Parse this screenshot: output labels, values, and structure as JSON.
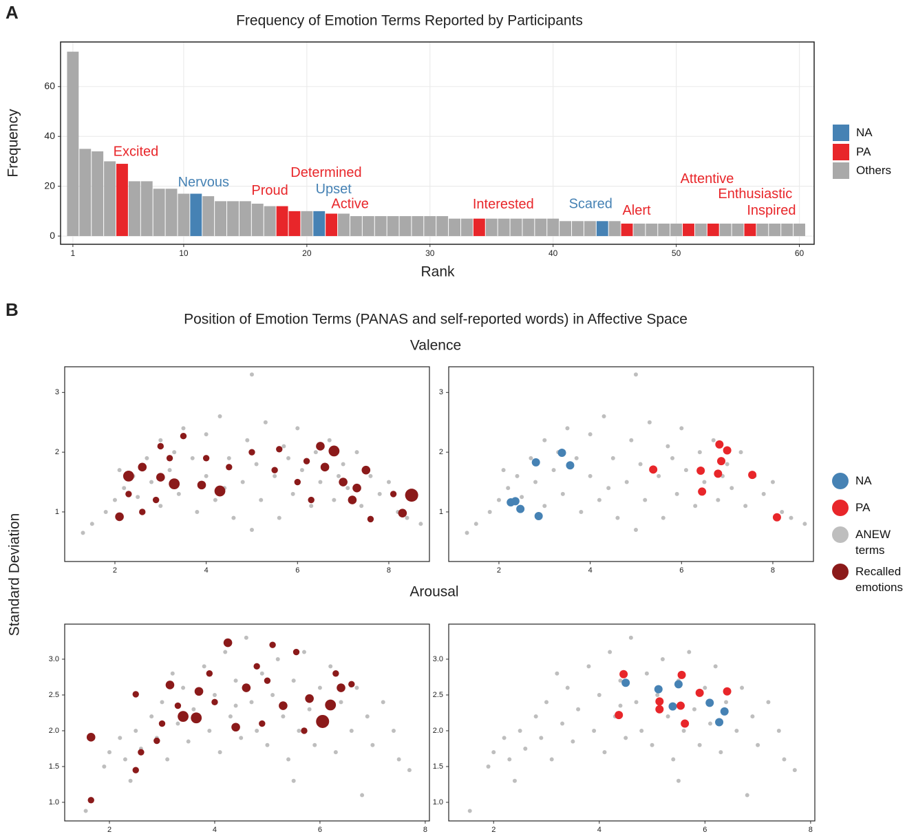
{
  "figure": {
    "panel_a_label": "A",
    "panel_b_label": "B",
    "title_b": "Position of Emotion Terms (PANAS and self-reported words) in Affective Space",
    "y_label_b": "Standard Deviation"
  },
  "chart_data": [
    {
      "type": "bar",
      "title": "Frequency of Emotion Terms Reported by Participants",
      "x_label": "Rank",
      "y_label": "Frequency",
      "grid": true,
      "x": [
        1,
        2,
        3,
        4,
        5,
        6,
        7,
        8,
        9,
        10,
        11,
        12,
        13,
        14,
        15,
        16,
        17,
        18,
        19,
        20,
        21,
        22,
        23,
        24,
        25,
        26,
        27,
        28,
        29,
        30,
        31,
        32,
        33,
        34,
        35,
        36,
        37,
        38,
        39,
        40,
        41,
        42,
        43,
        44,
        45,
        46,
        47,
        48,
        49,
        50,
        51,
        52,
        53,
        54,
        55,
        56,
        57,
        58,
        59,
        60
      ],
      "xlim": [
        0,
        61.2
      ],
      "ylim": [
        -3.3,
        77.9
      ],
      "xticks": [
        1,
        10,
        20,
        30,
        40,
        50,
        60
      ],
      "yticks": [
        0,
        20,
        40,
        60
      ],
      "series": [
        {
          "name": "NA",
          "color": "#4682b4",
          "values": [
            null,
            null,
            null,
            null,
            null,
            null,
            null,
            null,
            null,
            null,
            17,
            null,
            null,
            null,
            null,
            null,
            null,
            null,
            null,
            null,
            10,
            null,
            null,
            null,
            null,
            null,
            null,
            null,
            null,
            null,
            null,
            null,
            null,
            null,
            null,
            null,
            null,
            null,
            null,
            null,
            null,
            null,
            null,
            6,
            null,
            null,
            null,
            null,
            null,
            null,
            null,
            null,
            null,
            null,
            null,
            null,
            null,
            null,
            null,
            null
          ]
        },
        {
          "name": "PA",
          "color": "#e8262a",
          "values": [
            null,
            null,
            null,
            null,
            29,
            null,
            null,
            null,
            null,
            null,
            null,
            null,
            null,
            null,
            null,
            null,
            null,
            12,
            10,
            null,
            null,
            9,
            null,
            null,
            null,
            null,
            null,
            null,
            null,
            null,
            null,
            null,
            null,
            7,
            null,
            null,
            null,
            null,
            null,
            null,
            null,
            null,
            null,
            null,
            null,
            5,
            null,
            null,
            null,
            null,
            5,
            null,
            5,
            null,
            null,
            5,
            null,
            null,
            null,
            null
          ]
        },
        {
          "name": "Others",
          "color": "#a9a9a9",
          "values": [
            74,
            35,
            34,
            30,
            null,
            22,
            22,
            19,
            19,
            17,
            null,
            16,
            14,
            14,
            14,
            13,
            12,
            null,
            null,
            10,
            null,
            null,
            9,
            8,
            8,
            8,
            8,
            8,
            8,
            8,
            8,
            7,
            7,
            null,
            7,
            7,
            7,
            7,
            7,
            7,
            6,
            6,
            6,
            null,
            6,
            null,
            5,
            5,
            5,
            5,
            null,
            5,
            null,
            5,
            5,
            null,
            5,
            5,
            5,
            5
          ]
        }
      ],
      "annotations": [
        {
          "text": "Excited",
          "x": 5
        },
        {
          "text": "Nervous",
          "x": 11
        },
        {
          "text": "Proud",
          "x": 18
        },
        {
          "text": "Determined",
          "x": 19
        },
        {
          "text": "Upset",
          "x": 21
        },
        {
          "text": "Active",
          "x": 22
        },
        {
          "text": "Interested",
          "x": 34
        },
        {
          "text": "Scared",
          "x": 44
        },
        {
          "text": "Alert",
          "x": 46
        },
        {
          "text": "Attentive",
          "x": 51
        },
        {
          "text": "Enthusiastic",
          "x": 53
        },
        {
          "text": "Inspired",
          "x": 56
        }
      ]
    },
    {
      "type": "scatter",
      "title": "Valence",
      "xlim": [
        0.9,
        8.89
      ],
      "ylim": [
        0.17,
        3.43
      ],
      "xticks": [
        2,
        4,
        6,
        8
      ],
      "yticks": [
        1,
        2,
        3
      ],
      "series": [
        {
          "name": "NA",
          "color": "#4682b4",
          "x": [
            2.81,
            3.38,
            3.56,
            2.26,
            2.36,
            2.47,
            2.87
          ],
          "y": [
            1.83,
            1.99,
            1.78,
            1.16,
            1.18,
            1.05,
            0.93
          ]
        },
        {
          "name": "PA",
          "color": "#e8262a",
          "x": [
            5.38,
            6.83,
            7.0,
            6.87,
            6.42,
            6.8,
            6.45,
            7.55,
            8.09
          ],
          "y": [
            1.71,
            2.13,
            2.03,
            1.85,
            1.69,
            1.64,
            1.34,
            1.62,
            0.91
          ]
        },
        {
          "name": "ANEW terms",
          "color": "#bebebe",
          "x": [
            1.3,
            1.5,
            1.8,
            2.0,
            2.2,
            2.4,
            2.5,
            2.7,
            2.8,
            3.0,
            3.0,
            3.2,
            3.4,
            3.5,
            3.7,
            3.8,
            4.0,
            4.0,
            4.2,
            4.3,
            4.5,
            4.6,
            4.8,
            4.9,
            5.0,
            5.0,
            5.1,
            5.2,
            5.3,
            5.5,
            5.6,
            5.7,
            5.9,
            6.0,
            6.1,
            6.3,
            6.4,
            6.5,
            6.7,
            6.8,
            7.0,
            7.1,
            7.3,
            7.4,
            7.6,
            7.8,
            8.0,
            8.2,
            8.4,
            8.7,
            3.3,
            4.4,
            5.8,
            2.1,
            6.9
          ],
          "y": [
            0.65,
            0.8,
            1.0,
            1.2,
            1.4,
            1.6,
            1.25,
            1.9,
            1.5,
            1.1,
            2.2,
            1.7,
            1.3,
            2.4,
            1.9,
            1.0,
            1.6,
            2.3,
            1.2,
            2.6,
            1.9,
            0.9,
            1.5,
            2.2,
            0.7,
            3.3,
            1.8,
            1.2,
            2.5,
            1.6,
            0.9,
            2.1,
            1.3,
            2.4,
            1.7,
            1.1,
            2.0,
            1.5,
            2.2,
            1.2,
            1.8,
            1.4,
            2.0,
            1.1,
            1.6,
            1.3,
            1.5,
            1.0,
            0.9,
            0.8,
            2.0,
            1.4,
            1.9,
            1.7,
            1.6
          ]
        },
        {
          "name": "Recalled emotions",
          "color": "#8b1a1a",
          "x": [
            2.1,
            2.6,
            2.3,
            2.6,
            3.0,
            3.3,
            3.9,
            4.3,
            3.5,
            4.5,
            5.0,
            5.5,
            6.0,
            6.3,
            6.5,
            6.8,
            7.0,
            7.5,
            7.2,
            8.5,
            8.3,
            7.6,
            3.0,
            2.9,
            5.6,
            6.2,
            6.6,
            7.3,
            4.0,
            2.3,
            8.1,
            3.2
          ],
          "y": [
            0.92,
            1.0,
            1.6,
            1.75,
            1.58,
            1.47,
            1.45,
            1.35,
            2.27,
            1.75,
            2.0,
            1.7,
            1.5,
            1.2,
            2.1,
            2.02,
            1.5,
            1.7,
            1.2,
            1.28,
            0.98,
            0.88,
            2.1,
            1.2,
            2.05,
            1.85,
            1.75,
            1.4,
            1.9,
            1.3,
            1.3,
            1.9
          ],
          "sizes": [
            3,
            2,
            4,
            3,
            3,
            4,
            3,
            4,
            2,
            2,
            2,
            2,
            2,
            2,
            3,
            4,
            3,
            3,
            3,
            5,
            3,
            2,
            2,
            2,
            2,
            2,
            3,
            3,
            2,
            2,
            2,
            2
          ]
        }
      ]
    },
    {
      "type": "scatter",
      "title": "Arousal",
      "xlim": [
        1.15,
        8.08
      ],
      "ylim": [
        0.74,
        3.49
      ],
      "xticks": [
        2,
        4,
        6,
        8
      ],
      "yticks": [
        {
          "value": 1,
          "label": "1.0"
        },
        1.5,
        {
          "value": 2,
          "label": "2.0"
        },
        2.5,
        {
          "value": 3,
          "label": "3.0"
        }
      ],
      "series": [
        {
          "name": "NA",
          "color": "#4682b4",
          "x": [
            4.5,
            5.12,
            5.5,
            5.39,
            6.09,
            6.37,
            6.27
          ],
          "y": [
            2.67,
            2.58,
            2.65,
            2.34,
            2.39,
            2.27,
            2.12
          ]
        },
        {
          "name": "PA",
          "color": "#e8262a",
          "x": [
            4.46,
            4.37,
            5.14,
            5.14,
            5.56,
            5.54,
            5.62,
            5.9,
            6.42
          ],
          "y": [
            2.79,
            2.22,
            2.41,
            2.3,
            2.78,
            2.35,
            2.1,
            2.53,
            2.55
          ]
        },
        {
          "name": "ANEW terms",
          "color": "#bebebe",
          "x": [
            1.55,
            1.9,
            2.0,
            2.2,
            2.3,
            2.5,
            2.6,
            2.8,
            2.9,
            3.0,
            3.1,
            3.3,
            3.4,
            3.5,
            3.6,
            3.8,
            3.9,
            4.0,
            4.1,
            4.2,
            4.3,
            4.4,
            4.5,
            4.6,
            4.7,
            4.8,
            4.9,
            5.0,
            5.1,
            5.2,
            5.3,
            5.4,
            5.5,
            5.6,
            5.7,
            5.8,
            5.9,
            6.0,
            6.1,
            6.2,
            6.3,
            6.4,
            6.6,
            6.7,
            6.9,
            7.0,
            7.2,
            7.4,
            7.5,
            7.7,
            5.5,
            6.8,
            4.4,
            3.2,
            2.4
          ],
          "y": [
            0.88,
            1.5,
            1.7,
            1.9,
            1.6,
            2.0,
            1.75,
            2.2,
            1.9,
            2.4,
            1.6,
            2.1,
            2.6,
            1.85,
            2.3,
            2.9,
            2.0,
            2.5,
            1.7,
            3.1,
            2.2,
            2.7,
            1.9,
            3.3,
            2.4,
            2.0,
            2.8,
            1.8,
            2.5,
            3.0,
            2.2,
            1.6,
            2.7,
            2.0,
            3.1,
            2.3,
            1.8,
            2.6,
            2.1,
            2.9,
            1.7,
            2.4,
            2.0,
            2.6,
            2.2,
            1.8,
            2.4,
            2.0,
            1.6,
            1.45,
            1.3,
            1.1,
            2.35,
            2.8,
            1.3
          ]
        },
        {
          "name": "Recalled emotions",
          "color": "#8b1a1a",
          "x": [
            1.65,
            1.65,
            2.5,
            3.15,
            2.9,
            3.4,
            3.65,
            3.7,
            4.25,
            4.6,
            5.0,
            5.3,
            5.55,
            5.8,
            6.05,
            6.2,
            6.4,
            3.0,
            4.0,
            4.9,
            5.7,
            6.6,
            2.6,
            2.5,
            3.9,
            4.8,
            5.1,
            4.4,
            3.3,
            6.3
          ],
          "y": [
            1.91,
            1.03,
            2.51,
            2.64,
            1.86,
            2.2,
            2.18,
            2.55,
            3.23,
            2.6,
            2.7,
            2.35,
            3.1,
            2.45,
            2.13,
            2.36,
            2.6,
            2.1,
            2.4,
            2.1,
            2.0,
            2.65,
            1.7,
            1.45,
            2.8,
            2.9,
            3.2,
            2.05,
            2.35,
            2.8
          ],
          "sizes": [
            3,
            2,
            2,
            3,
            2,
            4,
            4,
            3,
            3,
            3,
            2,
            3,
            2,
            3,
            5,
            4,
            3,
            2,
            2,
            2,
            2,
            2,
            2,
            2,
            2,
            2,
            2,
            3,
            2,
            2
          ]
        }
      ]
    }
  ]
}
